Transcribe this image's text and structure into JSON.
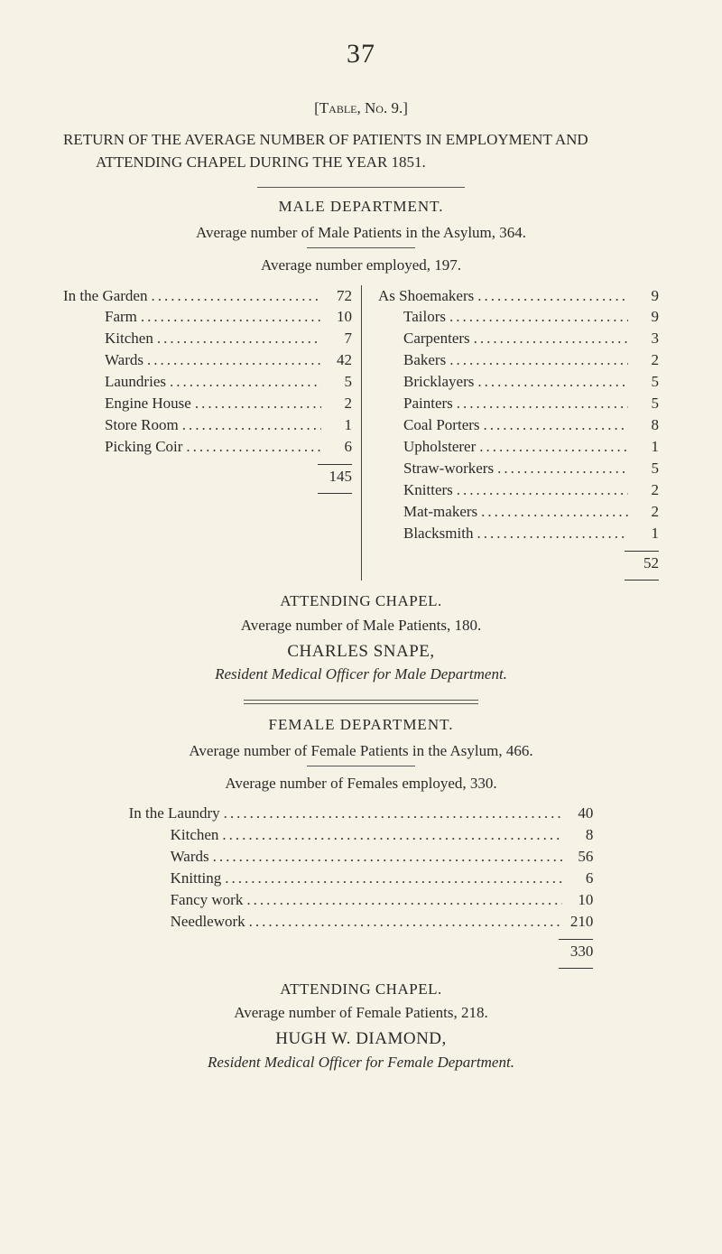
{
  "page_number": "37",
  "table_ref": "[Table, No. 9.]",
  "heading": "RETURN OF THE AVERAGE NUMBER OF PATIENTS IN EMPLOYMENT AND ATTENDING CHAPEL DURING THE YEAR 1851.",
  "male": {
    "dept_label": "MALE DEPARTMENT.",
    "avg_patients_line": "Average number of Male Patients in the Asylum, 364.",
    "avg_employed_line": "Average number employed, 197.",
    "left_lead": "In the",
    "left_items": [
      {
        "label": "Garden",
        "value": "72"
      },
      {
        "label": "Farm",
        "value": "10"
      },
      {
        "label": "Kitchen",
        "value": "7"
      },
      {
        "label": "Wards",
        "value": "42"
      },
      {
        "label": "Laundries",
        "value": "5"
      },
      {
        "label": "Engine House",
        "value": "2"
      },
      {
        "label": "Store Room",
        "value": "1"
      },
      {
        "label": "Picking Coir",
        "value": "6"
      }
    ],
    "left_total": "145",
    "right_lead": "As",
    "right_items": [
      {
        "label": "Shoemakers",
        "value": "9"
      },
      {
        "label": "Tailors",
        "value": "9"
      },
      {
        "label": "Carpenters",
        "value": "3"
      },
      {
        "label": "Bakers",
        "value": "2"
      },
      {
        "label": "Bricklayers",
        "value": "5"
      },
      {
        "label": "Painters",
        "value": "5"
      },
      {
        "label": "Coal Porters",
        "value": "8"
      },
      {
        "label": "Upholsterer",
        "value": "1"
      },
      {
        "label": "Straw-workers",
        "value": "5"
      },
      {
        "label": "Knitters",
        "value": "2"
      },
      {
        "label": "Mat-makers",
        "value": "2"
      },
      {
        "label": "Blacksmith",
        "value": "1"
      }
    ],
    "right_total": "52",
    "chapel_title": "ATTENDING CHAPEL.",
    "chapel_line": "Average number of Male Patients, 180.",
    "officer_name": "CHARLES SNAPE,",
    "officer_title": "Resident Medical Officer for Male Department."
  },
  "female": {
    "dept_label": "FEMALE DEPARTMENT.",
    "avg_patients_line": "Average number of Female Patients in the Asylum, 466.",
    "avg_employed_line": "Average number of Females employed, 330.",
    "lead": "In the",
    "items": [
      {
        "label": "Laundry",
        "value": "40"
      },
      {
        "label": "Kitchen",
        "value": "8"
      },
      {
        "label": "Wards",
        "value": "56"
      },
      {
        "label": "Knitting",
        "value": "6"
      },
      {
        "label": "Fancy work",
        "value": "10"
      },
      {
        "label": "Needlework",
        "value": "210"
      }
    ],
    "total": "330",
    "chapel_title": "ATTENDING CHAPEL.",
    "chapel_line": "Average number of Female Patients, 218.",
    "officer_name": "HUGH W. DIAMOND,",
    "officer_title": "Resident Medical Officer for Female Department."
  }
}
